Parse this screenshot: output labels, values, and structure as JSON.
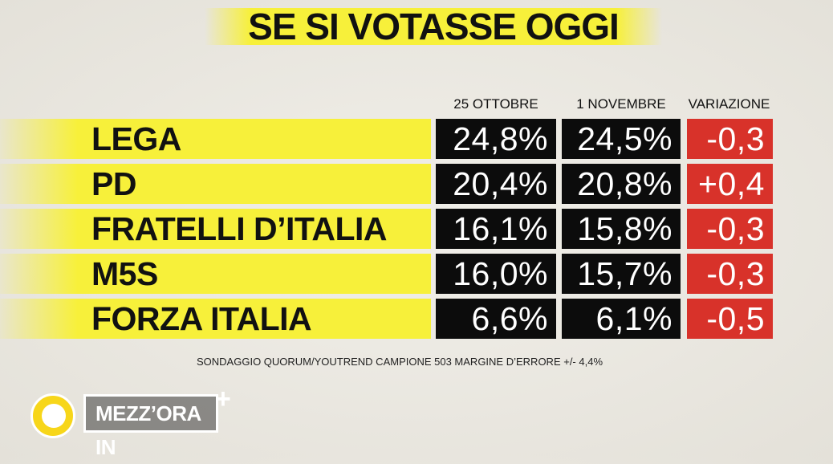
{
  "header": {
    "title": "SE SI VOTASSE OGGI"
  },
  "table": {
    "columns": [
      "25 OTTOBRE",
      "1 NOVEMBRE",
      "VARIAZIONE"
    ],
    "rows": [
      [
        "LEGA",
        "24,8%",
        "24,5%",
        "-0,3"
      ],
      [
        "PD",
        "20,4%",
        "20,8%",
        "+0,4"
      ],
      [
        "FRATELLI D’ITALIA",
        "16,1%",
        "15,8%",
        "-0,3"
      ],
      [
        "M5S",
        "16,0%",
        "15,7%",
        "-0,3"
      ],
      [
        "FORZA ITALIA",
        "6,6%",
        "6,1%",
        "-0,5"
      ]
    ]
  },
  "footnote": "SONDAGGIO QUORUM/YOUTREND CAMPIONE 503 MARGINE D’ERRORE +/- 4,4%",
  "logo": {
    "text": "MEZZ’ORA IN",
    "mark": "+"
  }
}
